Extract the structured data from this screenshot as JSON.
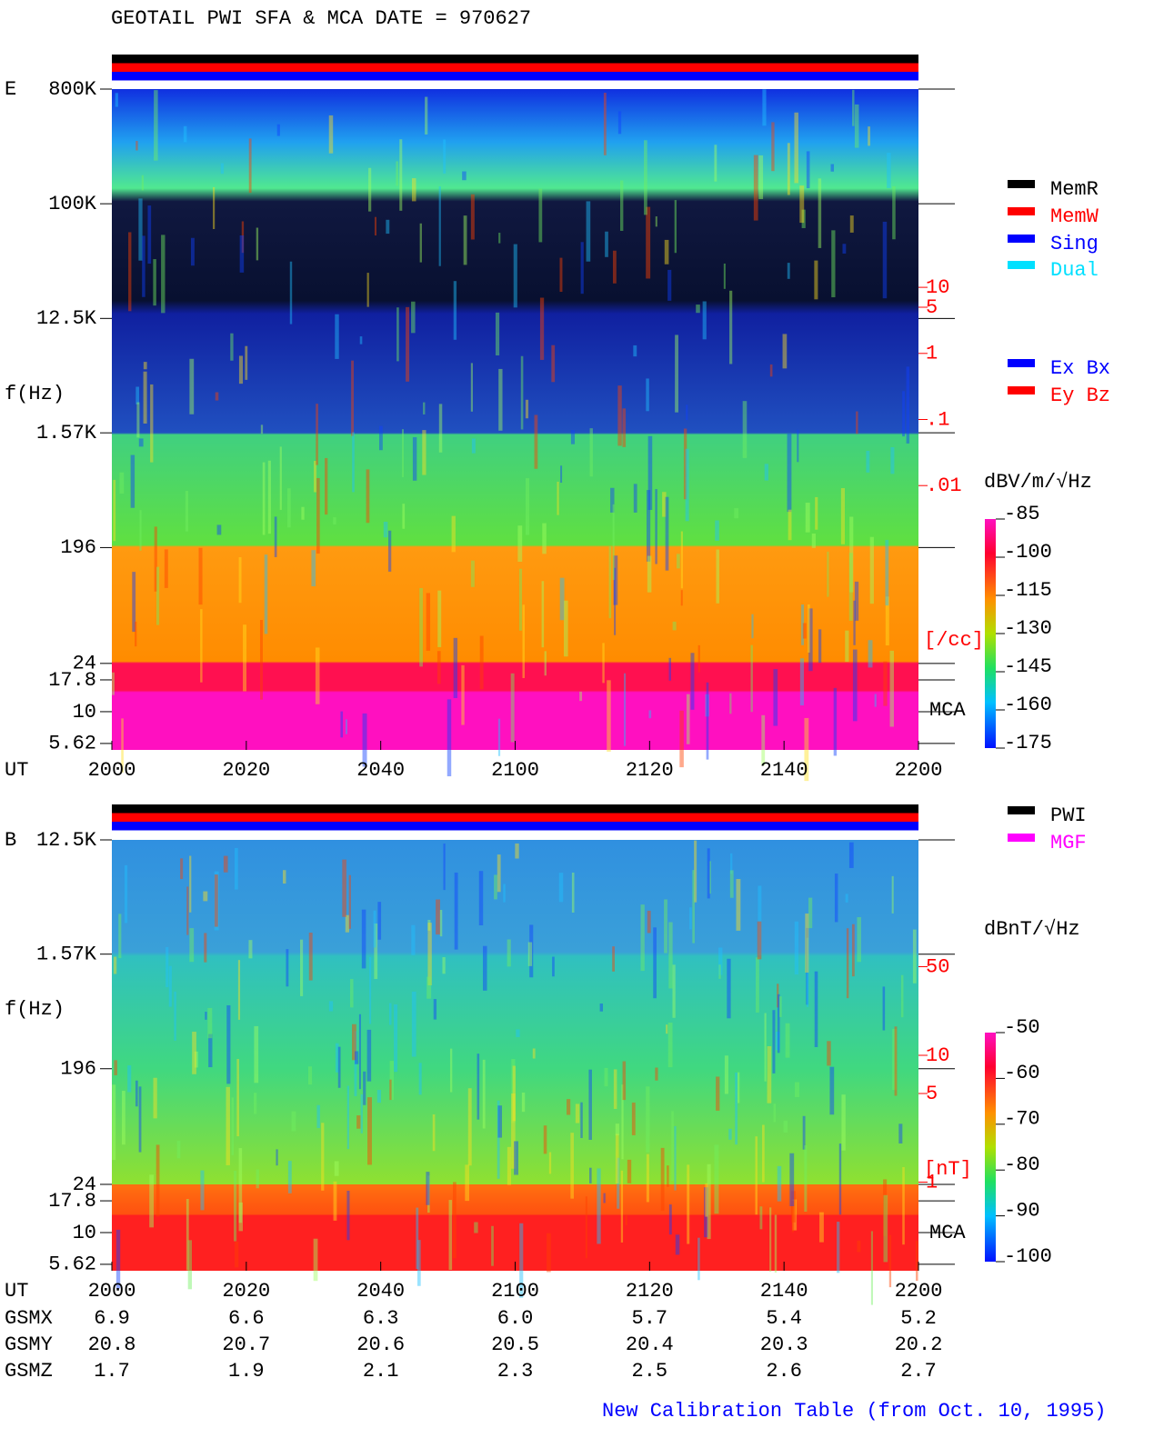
{
  "title": "GEOTAIL  PWI SFA & MCA   DATE = 970627",
  "chart_data": [
    {
      "type": "spectrogram",
      "panel_label": "E",
      "y_label": "f(Hz)",
      "x_label": "UT",
      "log_y": true,
      "ylim": [
        5,
        800000
      ],
      "yticks": [
        {
          "value": 800000,
          "label": "800K"
        },
        {
          "value": 100000,
          "label": "100K"
        },
        {
          "value": 12500,
          "label": "12.5K"
        },
        {
          "value": 1570,
          "label": "1.57K"
        },
        196,
        24,
        17.8,
        10,
        5.62
      ],
      "xticks": [
        "2000",
        "2020",
        "2040",
        "2100",
        "2120",
        "2140",
        "2200"
      ],
      "mca_label": "MCA",
      "y2_label": "[/cc]",
      "y2lim": [
        1e-06,
        10000
      ],
      "y2ticks": [
        10,
        5,
        1,
        {
          "value": 0.1,
          "label": ".1"
        },
        {
          "value": 0.01,
          "label": ".01"
        }
      ],
      "y2_color": "#ff0000",
      "colorbar": {
        "label": "dBV/m/√Hz",
        "clim": [
          -175,
          -85
        ],
        "ticks": [
          -85,
          -100,
          -115,
          -130,
          -145,
          -160,
          -175
        ]
      },
      "status_legend": [
        {
          "name": "MemR",
          "color": "#000000"
        },
        {
          "name": "MemW",
          "color": "#ff0000"
        },
        {
          "name": "Sing",
          "color": "#0000ff"
        },
        {
          "name": "Dual",
          "color": "#00e0ff"
        }
      ],
      "axis_legend": [
        {
          "name": "Ex Bx",
          "color": "#0000ff"
        },
        {
          "name": "Ey Bz",
          "color": "#ff0000"
        }
      ]
    },
    {
      "type": "spectrogram",
      "panel_label": "B",
      "y_label": "f(Hz)",
      "x_label": "UT",
      "log_y": true,
      "ylim": [
        5,
        12500
      ],
      "yticks": [
        {
          "value": 12500,
          "label": "12.5K"
        },
        {
          "value": 1570,
          "label": "1.57K"
        },
        196,
        24,
        17.8,
        10,
        5.62
      ],
      "xticks": [
        "2000",
        "2020",
        "2040",
        "2100",
        "2120",
        "2140",
        "2200"
      ],
      "mca_label": "MCA",
      "y2_label": "[nT]",
      "y2lim": [
        0.2,
        500
      ],
      "y2ticks": [
        50,
        10,
        5,
        1
      ],
      "y2_color": "#ff0000",
      "colorbar": {
        "label": "dBnT/√Hz",
        "clim": [
          -100,
          -50
        ],
        "ticks": [
          -50,
          -60,
          -70,
          -80,
          -90,
          -100
        ]
      },
      "status_legend": [
        {
          "name": "PWI",
          "color": "#000000"
        },
        {
          "name": "MGF",
          "color": "#ff00ff"
        }
      ]
    }
  ],
  "ephemeris": {
    "rows": [
      {
        "name": "GSMX",
        "values": [
          "6.9",
          "6.6",
          "6.3",
          "6.0",
          "5.7",
          "5.4",
          "5.2"
        ]
      },
      {
        "name": "GSMY",
        "values": [
          "20.8",
          "20.7",
          "20.6",
          "20.5",
          "20.4",
          "20.3",
          "20.2"
        ]
      },
      {
        "name": "GSMZ",
        "values": [
          "1.7",
          "1.9",
          "2.1",
          "2.3",
          "2.5",
          "2.6",
          "2.7"
        ]
      }
    ]
  },
  "footer": "New Calibration Table (from Oct. 10, 1995)"
}
